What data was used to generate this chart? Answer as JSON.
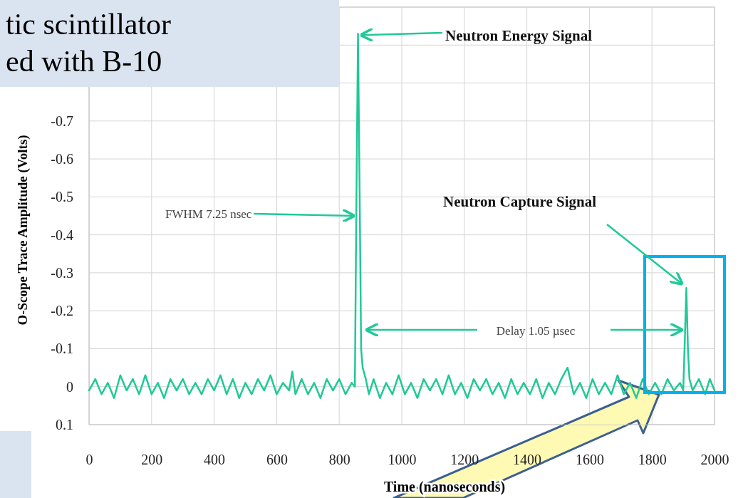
{
  "chart_data": {
    "type": "line",
    "title": "tic scintillator\ned with B-10",
    "xlabel": "Time (nanoseconds)",
    "ylabel": "O-Scope Trace Amplitude  (Volts)",
    "x": [
      0,
      20,
      40,
      60,
      80,
      100,
      120,
      140,
      160,
      180,
      200,
      220,
      240,
      260,
      280,
      300,
      320,
      340,
      360,
      380,
      400,
      420,
      440,
      460,
      480,
      500,
      520,
      540,
      560,
      580,
      600,
      620,
      640,
      650,
      660,
      680,
      700,
      720,
      740,
      760,
      780,
      800,
      820,
      840,
      850,
      855,
      860,
      866,
      870,
      875,
      885,
      895,
      910,
      930,
      950,
      970,
      990,
      1010,
      1030,
      1050,
      1070,
      1090,
      1110,
      1130,
      1150,
      1170,
      1190,
      1210,
      1230,
      1250,
      1270,
      1290,
      1310,
      1330,
      1350,
      1370,
      1390,
      1410,
      1430,
      1450,
      1470,
      1490,
      1510,
      1530,
      1550,
      1570,
      1590,
      1610,
      1630,
      1650,
      1670,
      1690,
      1710,
      1730,
      1750,
      1770,
      1790,
      1810,
      1830,
      1850,
      1870,
      1890,
      1900,
      1905,
      1910,
      1915,
      1920,
      1930,
      1950,
      1970,
      1985,
      2000
    ],
    "series": [
      {
        "color": "#20c997",
        "values": [
          0.01,
          -0.02,
          0.02,
          -0.01,
          0.03,
          -0.03,
          0.01,
          -0.02,
          0.02,
          -0.03,
          0.02,
          -0.01,
          0.03,
          -0.02,
          0.01,
          -0.02,
          0.02,
          -0.01,
          0.02,
          -0.02,
          0.01,
          -0.03,
          0.02,
          -0.02,
          0.03,
          -0.01,
          0.02,
          -0.02,
          0.01,
          -0.03,
          0.02,
          -0.01,
          0.01,
          -0.04,
          0.02,
          -0.02,
          0.02,
          -0.01,
          0.03,
          -0.02,
          0.01,
          -0.02,
          0.02,
          -0.01,
          0,
          -0.5,
          -0.93,
          -0.45,
          -0.1,
          -0.05,
          -0.02,
          0.02,
          -0.02,
          0.03,
          -0.01,
          0.02,
          -0.03,
          0.02,
          -0.01,
          0.03,
          -0.02,
          0.01,
          -0.02,
          0.02,
          -0.03,
          0.02,
          -0.01,
          0.03,
          -0.02,
          0.01,
          -0.02,
          0.02,
          -0.01,
          0.03,
          -0.02,
          0.02,
          -0.01,
          0.02,
          -0.02,
          0.03,
          -0.01,
          0.02,
          -0.02,
          -0.05,
          0.02,
          -0.01,
          0.03,
          -0.02,
          0.02,
          -0.01,
          0.02,
          -0.03,
          0.02,
          -0.01,
          0.03,
          -0.02,
          0.02,
          -0.01,
          0.02,
          -0.02,
          0.01,
          -0.01,
          0.01,
          -0.12,
          -0.26,
          -0.1,
          -0.02,
          0.01,
          -0.02,
          0.02,
          -0.02,
          0.01
        ]
      }
    ],
    "xlim": [
      0,
      2000
    ],
    "xticks": [
      0,
      200,
      400,
      600,
      800,
      1000,
      1200,
      1400,
      1600,
      1800,
      2000
    ],
    "ylim": [
      0.1,
      -1.0
    ],
    "yticks": [
      0.1,
      0,
      -0.1,
      -0.2,
      -0.3,
      -0.4,
      -0.5,
      -0.6,
      -0.7,
      {
        "value": -0.8,
        "label": null
      },
      {
        "value": -0.9,
        "label": null
      },
      {
        "value": -1.0,
        "label": null
      }
    ],
    "grid": true,
    "annotations": [
      {
        "text": "Neutron Energy Signal",
        "x": 862,
        "y": -0.93
      },
      {
        "text": "FWHM 7.25 nsec",
        "x": 860,
        "y": -0.45
      },
      "Delay 1.05 µsec",
      {
        "text": "Neutron Capture Signal",
        "x": 1909,
        "y": -0.26
      }
    ]
  }
}
